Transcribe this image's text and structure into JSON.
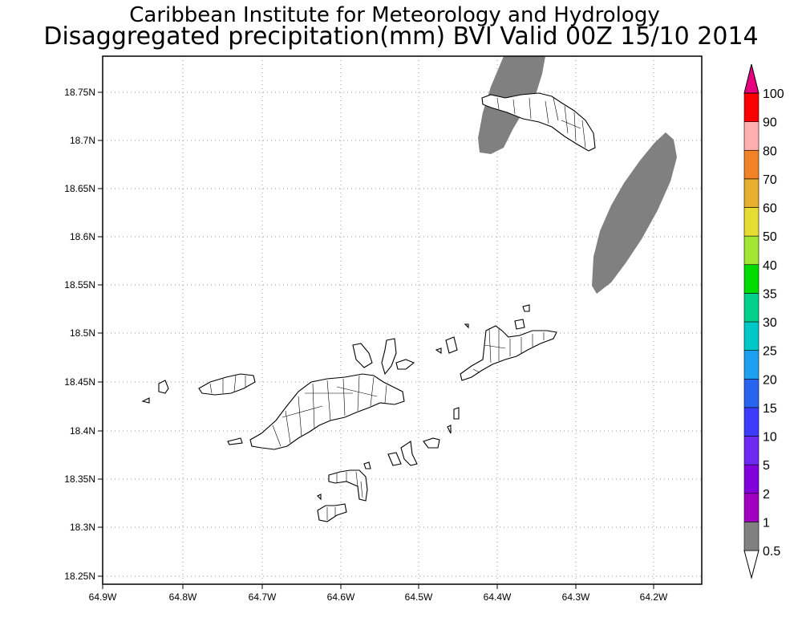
{
  "header": {
    "institute": "Caribbean Institute for Meteorology and Hydrology",
    "product": "Disaggregated precipitation(mm) BVI Valid 00Z 15/10 2014"
  },
  "map": {
    "lon_ticks": [
      "64.9W",
      "64.8W",
      "64.7W",
      "64.6W",
      "64.5W",
      "64.4W",
      "64.3W",
      "64.2W"
    ],
    "lat_ticks": [
      "18.75N",
      "18.7N",
      "18.65N",
      "18.6N",
      "18.55N",
      "18.5N",
      "18.45N",
      "18.4N",
      "18.35N",
      "18.3N",
      "18.25N"
    ],
    "grid": true,
    "precip_color": "#808080"
  },
  "colorbar": {
    "levels": [
      "0.5",
      "1",
      "2",
      "5",
      "10",
      "15",
      "20",
      "25",
      "30",
      "35",
      "40",
      "50",
      "60",
      "70",
      "80",
      "90",
      "100"
    ],
    "colors": [
      "#ffffff",
      "#808080",
      "#a000c0",
      "#8200dc",
      "#6e28f0",
      "#3c3cff",
      "#2864f0",
      "#1ea0f0",
      "#00c8c8",
      "#00d28c",
      "#00dc00",
      "#a0e632",
      "#e6dc32",
      "#e6af2d",
      "#f08228",
      "#ffafaf",
      "#fa0000",
      "#ff3c3c",
      "#e6007e"
    ]
  }
}
